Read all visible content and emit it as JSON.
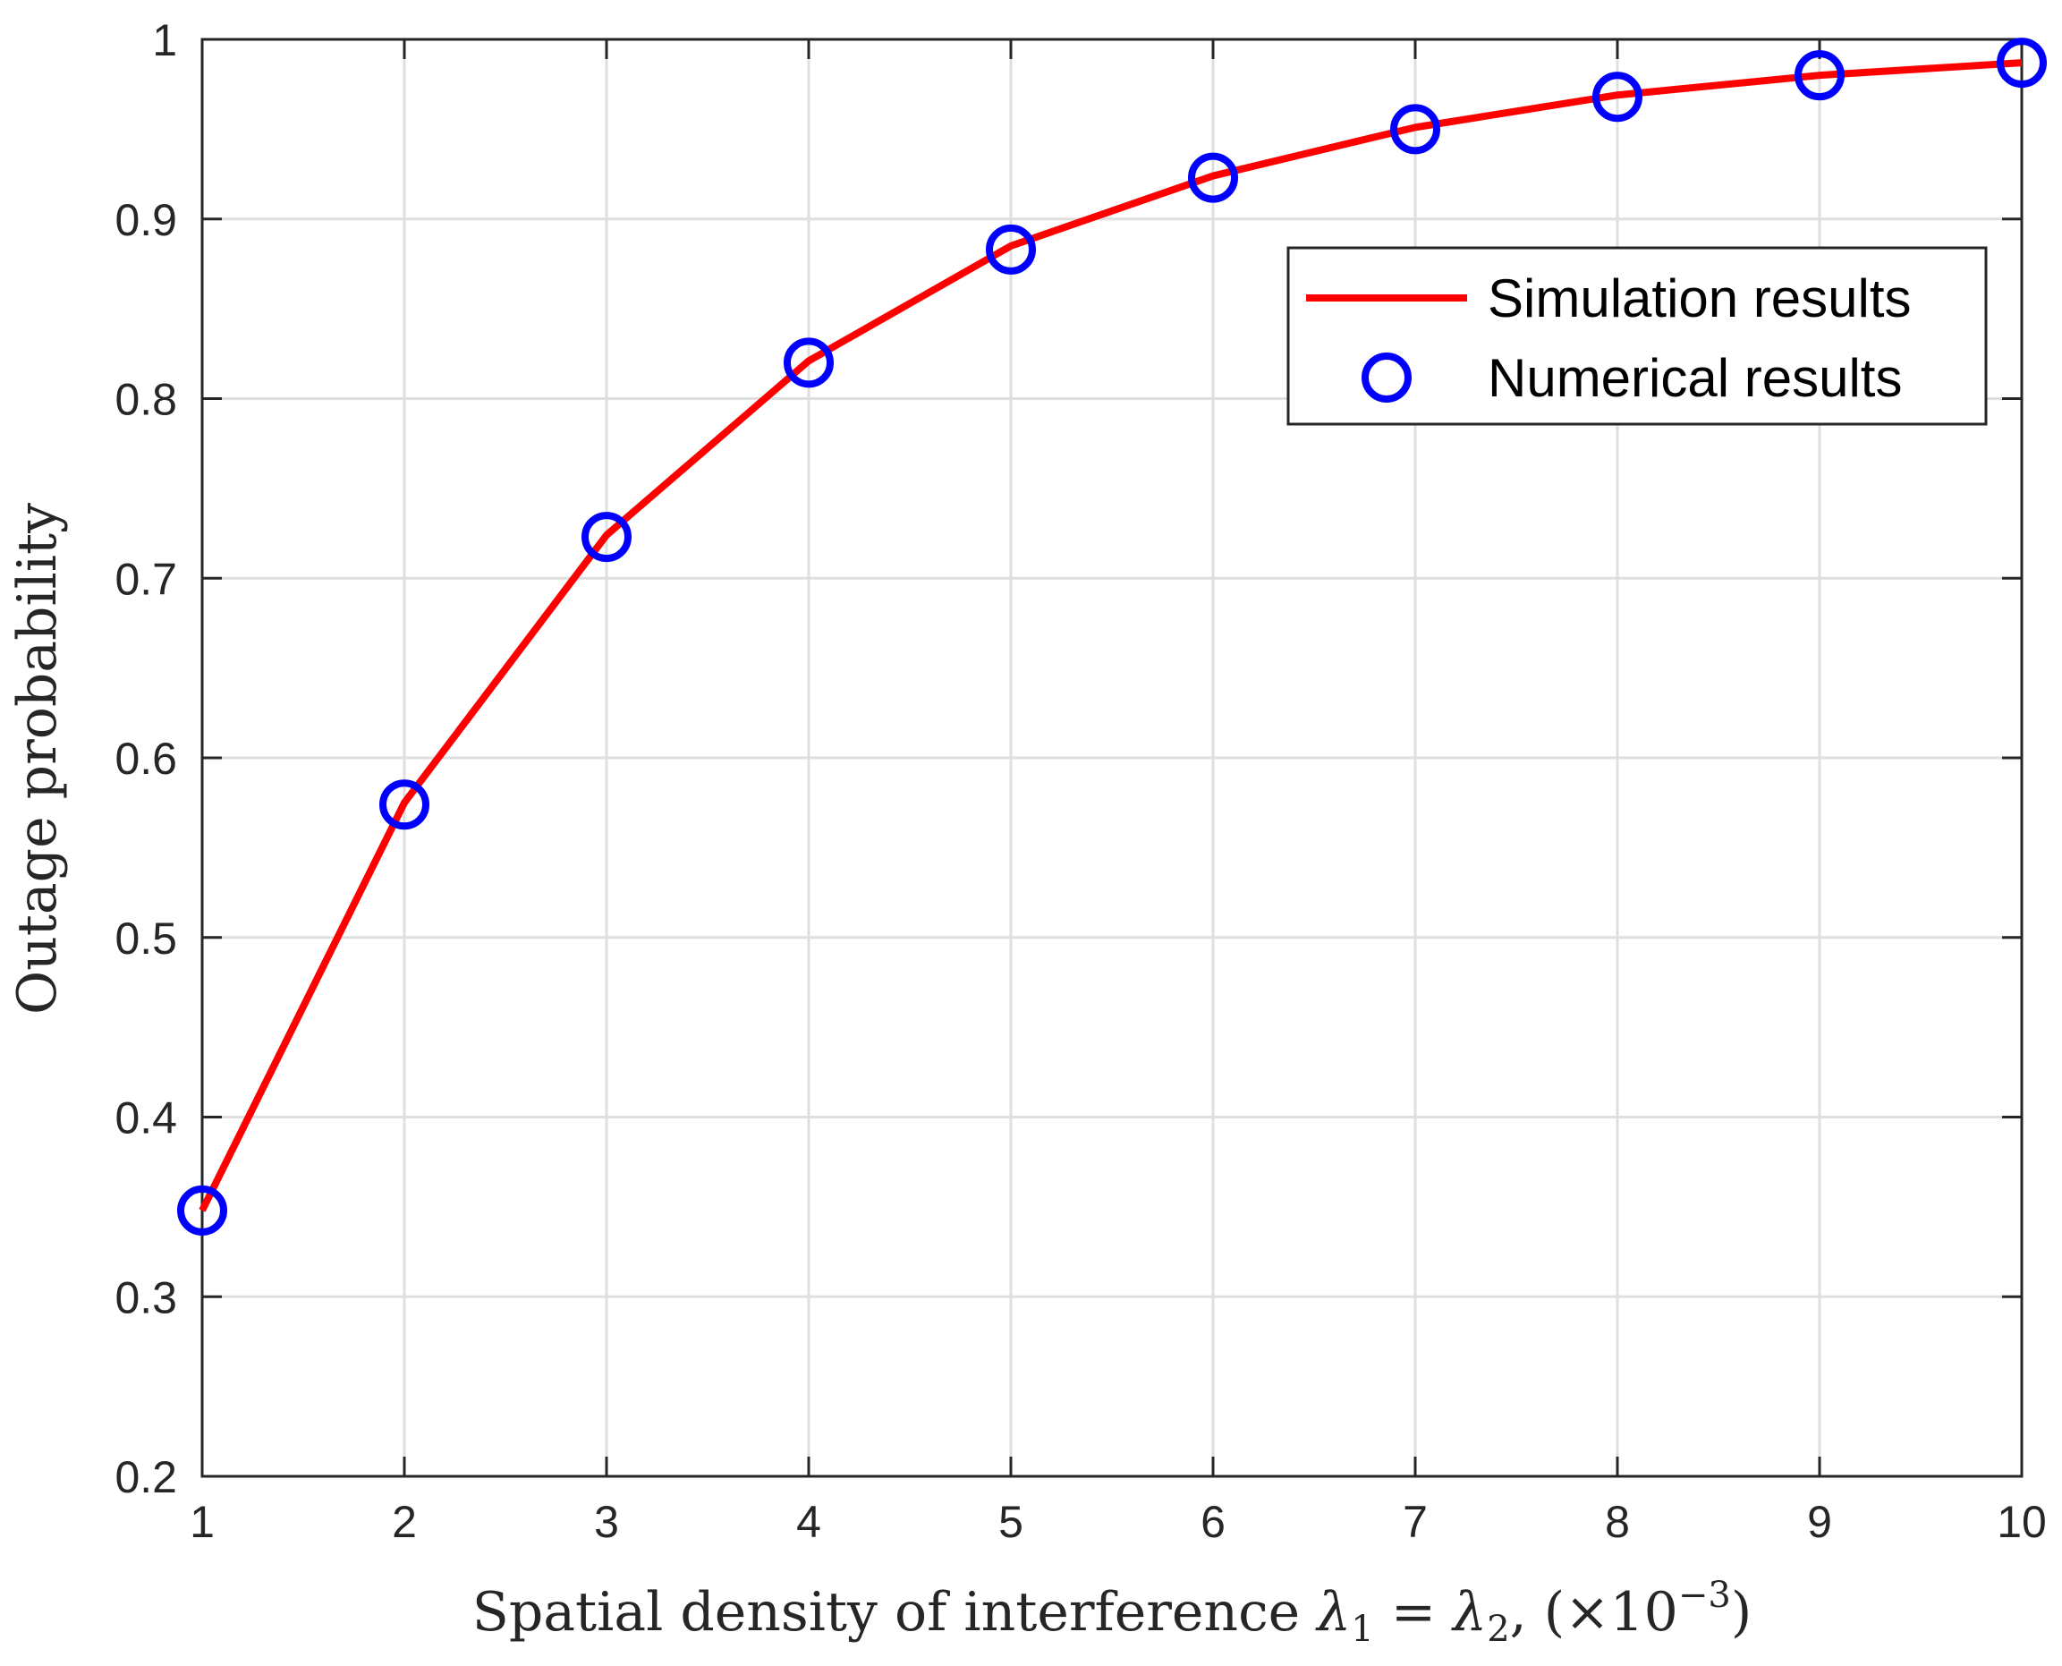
{
  "chart_data": {
    "type": "line",
    "xlabel_text": "Spatial density of interference ",
    "xlabel_math_l1": "λ",
    "xlabel_math_s1": "1",
    "xlabel_math_eq": " = ",
    "xlabel_math_l2": "λ",
    "xlabel_math_s2": "2",
    "xlabel_math_sep": ", (×10",
    "xlabel_math_exp": "−3",
    "xlabel_math_close": ")",
    "ylabel": "Outage probability",
    "xlim": [
      1,
      10
    ],
    "ylim": [
      0.2,
      1
    ],
    "xticks": [
      1,
      2,
      3,
      4,
      5,
      6,
      7,
      8,
      9,
      10
    ],
    "xtick_labels": [
      "1",
      "2",
      "3",
      "4",
      "5",
      "6",
      "7",
      "8",
      "9",
      "10"
    ],
    "yticks": [
      0.2,
      0.3,
      0.4,
      0.5,
      0.6,
      0.7,
      0.8,
      0.9,
      1
    ],
    "ytick_labels": [
      "0.2",
      "0.3",
      "0.4",
      "0.5",
      "0.6",
      "0.7",
      "0.8",
      "0.9",
      "1"
    ],
    "grid": true,
    "legend_position": "top-right",
    "series": [
      {
        "name": "Simulation results",
        "style": "line",
        "color": "#ff0000",
        "x": [
          1,
          2,
          3,
          4,
          5,
          6,
          7,
          8,
          9,
          10
        ],
        "y": [
          0.348,
          0.575,
          0.724,
          0.821,
          0.885,
          0.924,
          0.951,
          0.969,
          0.98,
          0.987
        ]
      },
      {
        "name": "Numerical results",
        "style": "marker-circle",
        "color": "#0000ff",
        "x": [
          1,
          2,
          3,
          4,
          5,
          6,
          7,
          8,
          9,
          10
        ],
        "y": [
          0.348,
          0.574,
          0.723,
          0.82,
          0.883,
          0.923,
          0.95,
          0.968,
          0.98,
          0.987
        ]
      }
    ]
  }
}
